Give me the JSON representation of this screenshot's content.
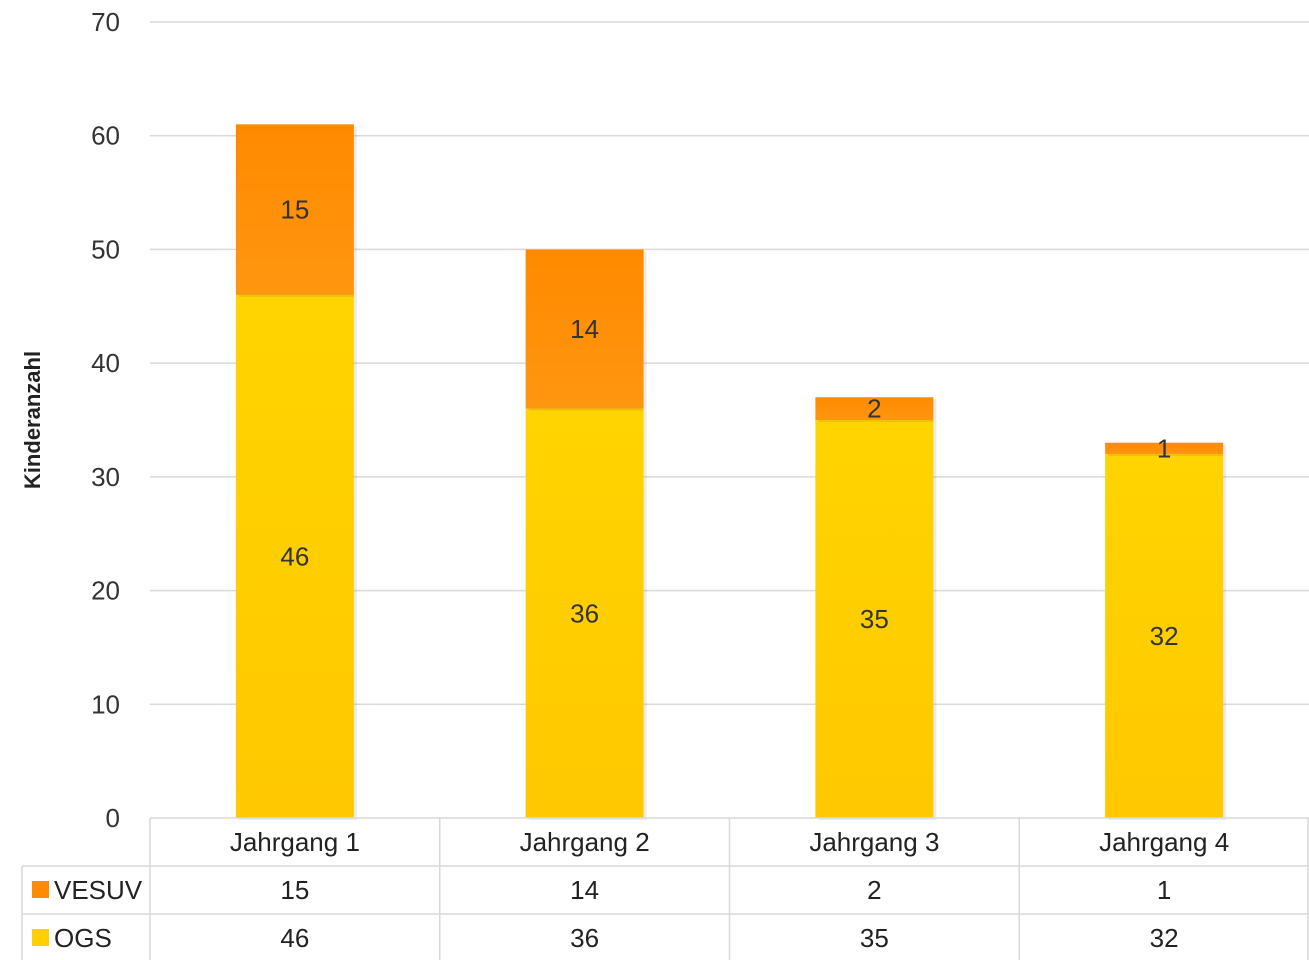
{
  "chart_data": {
    "type": "bar",
    "stacked": true,
    "categories": [
      "Jahrgang 1",
      "Jahrgang 2",
      "Jahrgang 3",
      "Jahrgang 4"
    ],
    "series": [
      {
        "name": "OGS",
        "values": [
          46,
          36,
          35,
          32
        ],
        "color": "#FFCF00"
      },
      {
        "name": "VESUV",
        "values": [
          15,
          14,
          2,
          1
        ],
        "color": "#FF8C00"
      }
    ],
    "title": "",
    "xlabel": "",
    "ylabel": "Kinderanzahl",
    "ylim": [
      0,
      70
    ],
    "yticks": [
      0,
      10,
      20,
      30,
      40,
      50,
      60,
      70
    ],
    "grid": true,
    "legend": "data-table-below",
    "table_rows": [
      "VESUV",
      "OGS"
    ]
  }
}
